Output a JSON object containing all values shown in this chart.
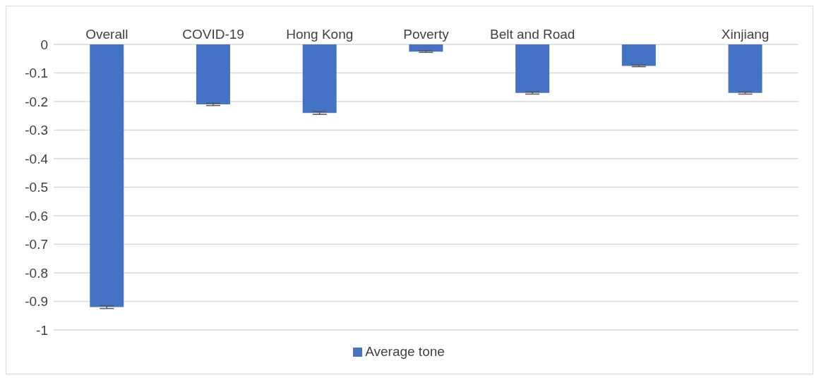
{
  "chart_data": {
    "type": "bar",
    "categories": [
      "Overall",
      "COVID-19",
      "Hong Kong",
      "Poverty",
      "Belt and Road",
      null,
      "Xinjiang"
    ],
    "series": [
      {
        "name": "Average tone",
        "color": "#4472c4",
        "values": [
          -0.92,
          -0.21,
          -0.24,
          -0.025,
          -0.17,
          -0.075,
          -0.17
        ],
        "errors": [
          0.005,
          0.004,
          0.005,
          0.003,
          0.004,
          0.003,
          0.004
        ]
      }
    ],
    "ylim": [
      -1,
      0
    ],
    "yticks": [
      -1,
      -0.9,
      -0.8,
      -0.7,
      -0.6,
      -0.5,
      -0.4,
      -0.3,
      -0.2,
      -0.1,
      0
    ],
    "grid": "y",
    "legend": "bottom"
  }
}
